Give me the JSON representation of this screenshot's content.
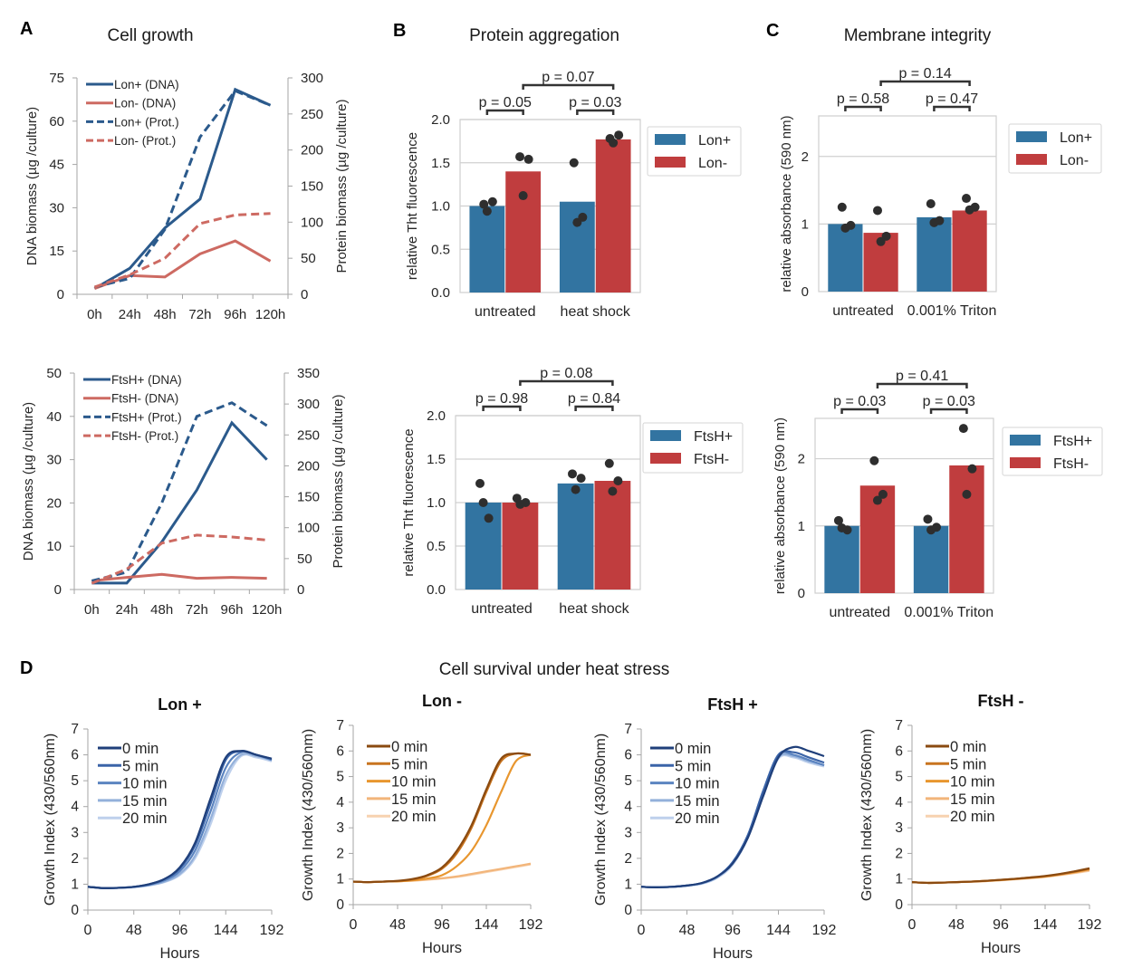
{
  "panel_labels": {
    "A": "A",
    "B": "B",
    "C": "C",
    "D": "D"
  },
  "titles": {
    "A": "Cell growth",
    "B": "Protein aggregation",
    "C": "Membrane integrity",
    "D": "Cell survival under heat stress"
  },
  "chart_data": [
    {
      "type": "line",
      "categories": [
        "0h",
        "24h",
        "48h",
        "72h",
        "96h",
        "120h"
      ],
      "ylabel": "DNA biomass (µg /culture)",
      "y2label": "Protein biomass (µg /culture)",
      "ylim": [
        0,
        75
      ],
      "yticks": [
        0,
        15,
        30,
        45,
        60,
        75
      ],
      "y2lim": [
        0,
        300
      ],
      "y2ticks": [
        0,
        50,
        100,
        150,
        200,
        250,
        300
      ],
      "legend": "top-left",
      "series": [
        {
          "name": "Lon+ (DNA)",
          "axis": "left",
          "style": "solid",
          "color": "#2b5a8c",
          "values": [
            2,
            9,
            23,
            33,
            71,
            65.5
          ]
        },
        {
          "name": "Lon- (DNA)",
          "axis": "left",
          "style": "solid",
          "color": "#cd6a62",
          "values": [
            2,
            6.5,
            6,
            14,
            18.5,
            11.5
          ]
        },
        {
          "name": "Lon+ (Prot.)",
          "axis": "right",
          "style": "dashed",
          "color": "#2b5a8c",
          "values": [
            10,
            22,
            90,
            218,
            282,
            262
          ]
        },
        {
          "name": "Lon- (Prot.)",
          "axis": "right",
          "style": "dashed",
          "color": "#cd6a62",
          "values": [
            10,
            27,
            50,
            98,
            110,
            112
          ]
        }
      ]
    },
    {
      "type": "line",
      "categories": [
        "0h",
        "24h",
        "48h",
        "72h",
        "96h",
        "120h"
      ],
      "ylabel": "DNA biomass (µg /culture)",
      "y2label": "Protein biomass (µg /culture)",
      "ylim": [
        0,
        50
      ],
      "yticks": [
        0,
        10,
        20,
        30,
        40,
        50
      ],
      "y2lim": [
        0,
        350
      ],
      "y2ticks": [
        0,
        50,
        100,
        150,
        200,
        250,
        300,
        350
      ],
      "legend": "top-left",
      "series": [
        {
          "name": "FtsH+ (DNA)",
          "axis": "left",
          "style": "solid",
          "color": "#2b5a8c",
          "values": [
            1.5,
            1.5,
            11,
            23,
            38.5,
            30
          ]
        },
        {
          "name": "FtsH- (DNA)",
          "axis": "left",
          "style": "solid",
          "color": "#cd6a62",
          "values": [
            2,
            2.8,
            3.5,
            2.6,
            2.8,
            2.6
          ]
        },
        {
          "name": "FtsH+ (Prot.)",
          "axis": "right",
          "style": "dashed",
          "color": "#2b5a8c",
          "values": [
            14,
            28,
            140,
            280,
            302,
            265
          ]
        },
        {
          "name": "FtsH- (Prot.)",
          "axis": "right",
          "style": "dashed",
          "color": "#cd6a62",
          "values": [
            10,
            33,
            75,
            88,
            85,
            80
          ]
        }
      ]
    },
    {
      "type": "bar",
      "categories": [
        "untreated",
        "heat shock"
      ],
      "ylabel": "relative Tht fluorescence",
      "ylim": [
        0,
        2.0
      ],
      "yticks": [
        "0.0",
        "0.5",
        "1.0",
        "1.5",
        "2.0"
      ],
      "grid": true,
      "legend": "right",
      "series": [
        {
          "name": "Lon+",
          "color": "#3274a1",
          "values": [
            1.0,
            1.05
          ],
          "points": [
            [
              1.02,
              1.05,
              0.94
            ],
            [
              1.5,
              0.87,
              0.81
            ]
          ]
        },
        {
          "name": "Lon-",
          "color": "#c03d3e",
          "values": [
            1.4,
            1.77
          ],
          "points": [
            [
              1.57,
              1.54,
              1.12
            ],
            [
              1.78,
              1.82,
              1.73
            ]
          ]
        }
      ],
      "comparisons": [
        {
          "label": "p = 0.05",
          "from": [
            0,
            0
          ],
          "to": [
            0,
            1
          ],
          "level": 1
        },
        {
          "label": "p = 0.03",
          "from": [
            1,
            0
          ],
          "to": [
            1,
            1
          ],
          "level": 1
        },
        {
          "label": "p = 0.07",
          "from": [
            0,
            1
          ],
          "to": [
            1,
            1
          ],
          "level": 2
        }
      ]
    },
    {
      "type": "bar",
      "categories": [
        "untreated",
        "0.001% Triton"
      ],
      "ylabel": "relative absorbance (590 nm)",
      "ylim": [
        0,
        2.6
      ],
      "yticks": [
        "0",
        "1",
        "2"
      ],
      "grid": true,
      "legend": "right",
      "series": [
        {
          "name": "Lon+",
          "color": "#3274a1",
          "values": [
            1.0,
            1.1
          ],
          "points": [
            [
              1.25,
              0.98,
              0.94
            ],
            [
              1.3,
              1.05,
              1.02
            ]
          ]
        },
        {
          "name": "Lon-",
          "color": "#c03d3e",
          "values": [
            0.87,
            1.2
          ],
          "points": [
            [
              1.2,
              0.82,
              0.74
            ],
            [
              1.38,
              1.25,
              1.21
            ]
          ]
        }
      ],
      "comparisons": [
        {
          "label": "p = 0.58",
          "from": [
            0,
            0
          ],
          "to": [
            0,
            1
          ],
          "level": 1
        },
        {
          "label": "p = 0.47",
          "from": [
            1,
            0
          ],
          "to": [
            1,
            1
          ],
          "level": 1
        },
        {
          "label": "p = 0.14",
          "from": [
            0,
            1
          ],
          "to": [
            1,
            1
          ],
          "level": 2
        }
      ]
    },
    {
      "type": "bar",
      "categories": [
        "untreated",
        "heat shock"
      ],
      "ylabel": "relative Tht fluorescence",
      "ylim": [
        0,
        2.0
      ],
      "yticks": [
        "0.0",
        "0.5",
        "1.0",
        "1.5",
        "2.0"
      ],
      "grid": true,
      "legend": "right",
      "series": [
        {
          "name": "FtsH+",
          "color": "#3274a1",
          "values": [
            1.0,
            1.22
          ],
          "points": [
            [
              1.22,
              0.82,
              1.0
            ],
            [
              1.33,
              1.28,
              1.15
            ]
          ]
        },
        {
          "name": "FtsH-",
          "color": "#c03d3e",
          "values": [
            1.0,
            1.25
          ],
          "points": [
            [
              1.05,
              1.0,
              0.98
            ],
            [
              1.45,
              1.25,
              1.13
            ]
          ]
        }
      ],
      "comparisons": [
        {
          "label": "p = 0.98",
          "from": [
            0,
            0
          ],
          "to": [
            0,
            1
          ],
          "level": 1
        },
        {
          "label": "p = 0.84",
          "from": [
            1,
            0
          ],
          "to": [
            1,
            1
          ],
          "level": 1
        },
        {
          "label": "p = 0.08",
          "from": [
            0,
            1
          ],
          "to": [
            1,
            1
          ],
          "level": 2
        }
      ]
    },
    {
      "type": "bar",
      "categories": [
        "untreated",
        "0.001% Triton"
      ],
      "ylabel": "relative absorbance (590 nm)",
      "ylim": [
        0,
        2.6
      ],
      "yticks": [
        "0",
        "1",
        "2"
      ],
      "grid": true,
      "legend": "right",
      "series": [
        {
          "name": "FtsH+",
          "color": "#3274a1",
          "values": [
            1.0,
            1.0
          ],
          "points": [
            [
              1.08,
              0.94,
              0.97
            ],
            [
              1.1,
              0.98,
              0.94
            ]
          ]
        },
        {
          "name": "FtsH-",
          "color": "#c03d3e",
          "values": [
            1.6,
            1.9
          ],
          "points": [
            [
              1.97,
              1.47,
              1.38
            ],
            [
              2.45,
              1.85,
              1.47
            ]
          ]
        }
      ],
      "comparisons": [
        {
          "label": "p = 0.03",
          "from": [
            0,
            0
          ],
          "to": [
            0,
            1
          ],
          "level": 1
        },
        {
          "label": "p = 0.03",
          "from": [
            1,
            0
          ],
          "to": [
            1,
            1
          ],
          "level": 1
        },
        {
          "label": "p = 0.41",
          "from": [
            0,
            1
          ],
          "to": [
            1,
            1
          ],
          "level": 2
        }
      ]
    },
    {
      "type": "line",
      "title": "Lon +",
      "xlabel": "Hours",
      "ylabel": "Growth Index (430/560nm)",
      "xlim": [
        0,
        192
      ],
      "xticks": [
        0,
        48,
        96,
        144,
        192
      ],
      "ylim": [
        0,
        7
      ],
      "yticks": [
        0,
        1,
        2,
        3,
        4,
        5,
        6,
        7
      ],
      "legend": "top-left",
      "x": [
        0,
        16,
        32,
        48,
        64,
        80,
        96,
        112,
        128,
        144,
        160,
        176,
        192
      ],
      "series": [
        {
          "name": "0 min",
          "color": "#1f3f7a",
          "values": [
            0.9,
            0.85,
            0.86,
            0.9,
            1.0,
            1.2,
            1.65,
            2.6,
            4.3,
            5.9,
            6.15,
            6.0,
            5.85
          ]
        },
        {
          "name": "5 min",
          "color": "#3b64a8",
          "values": [
            0.9,
            0.85,
            0.86,
            0.9,
            1.0,
            1.2,
            1.6,
            2.5,
            4.1,
            5.8,
            6.15,
            6.0,
            5.85
          ]
        },
        {
          "name": "10 min",
          "color": "#5b84c0",
          "values": [
            0.9,
            0.85,
            0.86,
            0.9,
            0.98,
            1.15,
            1.5,
            2.3,
            3.8,
            5.5,
            6.1,
            6.0,
            5.8
          ]
        },
        {
          "name": "15 min",
          "color": "#93b0da",
          "values": [
            0.9,
            0.85,
            0.86,
            0.89,
            0.96,
            1.1,
            1.4,
            2.1,
            3.5,
            5.2,
            6.0,
            5.95,
            5.8
          ]
        },
        {
          "name": "20 min",
          "color": "#bed0ec",
          "values": [
            0.9,
            0.85,
            0.86,
            0.88,
            0.95,
            1.08,
            1.35,
            2.0,
            3.3,
            5.0,
            5.95,
            5.9,
            5.75
          ]
        }
      ]
    },
    {
      "type": "line",
      "title": "Lon -",
      "xlabel": "Hours",
      "ylabel": "Growth Index (430/560nm)",
      "xlim": [
        0,
        192
      ],
      "xticks": [
        0,
        48,
        96,
        144,
        192
      ],
      "ylim": [
        0,
        7
      ],
      "yticks": [
        0,
        1,
        2,
        3,
        4,
        5,
        6,
        7
      ],
      "legend": "top-left",
      "x": [
        0,
        16,
        32,
        48,
        64,
        80,
        96,
        112,
        128,
        144,
        160,
        176,
        192
      ],
      "series": [
        {
          "name": "0 min",
          "color": "#8a4a10",
          "values": [
            0.9,
            0.88,
            0.9,
            0.93,
            1.0,
            1.15,
            1.45,
            2.1,
            3.1,
            4.5,
            5.7,
            5.9,
            5.85
          ]
        },
        {
          "name": "5 min",
          "color": "#c8741f",
          "values": [
            0.9,
            0.88,
            0.9,
            0.92,
            0.98,
            1.12,
            1.4,
            2.0,
            3.0,
            4.4,
            5.6,
            5.9,
            5.85
          ]
        },
        {
          "name": "10 min",
          "color": "#e8962e",
          "values": [
            0.9,
            0.88,
            0.9,
            0.91,
            0.95,
            1.02,
            1.15,
            1.5,
            2.1,
            3.1,
            4.4,
            5.6,
            5.85
          ]
        },
        {
          "name": "15 min",
          "color": "#f2b57a",
          "values": [
            0.9,
            0.88,
            0.9,
            0.91,
            0.94,
            0.98,
            1.03,
            1.1,
            1.2,
            1.3,
            1.4,
            1.5,
            1.6
          ]
        },
        {
          "name": "20 min",
          "color": "#f7d2b0",
          "values": [
            0.9,
            0.88,
            0.9,
            0.91,
            0.93,
            0.97,
            1.02,
            1.08,
            1.17,
            1.27,
            1.37,
            1.47,
            1.57
          ]
        }
      ]
    },
    {
      "type": "line",
      "title": "FtsH +",
      "xlabel": "Hours",
      "ylabel": "Growth Index (430/560nm)",
      "xlim": [
        0,
        192
      ],
      "xticks": [
        0,
        48,
        96,
        144,
        192
      ],
      "ylim": [
        0,
        7
      ],
      "yticks": [
        0,
        1,
        2,
        3,
        4,
        5,
        6,
        7
      ],
      "legend": "top-left",
      "x": [
        0,
        16,
        32,
        48,
        64,
        80,
        96,
        112,
        128,
        144,
        160,
        176,
        192
      ],
      "series": [
        {
          "name": "0 min",
          "color": "#1f3f7a",
          "values": [
            0.9,
            0.88,
            0.9,
            0.95,
            1.05,
            1.3,
            1.8,
            2.8,
            4.4,
            5.9,
            6.3,
            6.15,
            5.95
          ]
        },
        {
          "name": "5 min",
          "color": "#3b64a8",
          "values": [
            0.9,
            0.88,
            0.9,
            0.95,
            1.05,
            1.3,
            1.85,
            2.9,
            4.6,
            6.0,
            6.1,
            5.9,
            5.7
          ]
        },
        {
          "name": "10 min",
          "color": "#5b84c0",
          "values": [
            0.9,
            0.88,
            0.9,
            0.95,
            1.05,
            1.3,
            1.85,
            2.9,
            4.6,
            6.0,
            6.0,
            5.8,
            5.6
          ]
        },
        {
          "name": "15 min",
          "color": "#93b0da",
          "values": [
            0.9,
            0.88,
            0.9,
            0.94,
            1.03,
            1.27,
            1.8,
            2.85,
            4.5,
            5.9,
            5.95,
            5.75,
            5.6
          ]
        },
        {
          "name": "20 min",
          "color": "#bed0ec",
          "values": [
            0.9,
            0.88,
            0.9,
            0.94,
            1.02,
            1.25,
            1.75,
            2.8,
            4.4,
            5.85,
            5.9,
            5.7,
            5.55
          ]
        }
      ]
    },
    {
      "type": "line",
      "title": "FtsH -",
      "xlabel": "Hours",
      "ylabel": "Growth Index (430/560nm)",
      "xlim": [
        0,
        192
      ],
      "xticks": [
        0,
        48,
        96,
        144,
        192
      ],
      "ylim": [
        0,
        7
      ],
      "yticks": [
        0,
        1,
        2,
        3,
        4,
        5,
        6,
        7
      ],
      "legend": "top-left",
      "x": [
        0,
        16,
        32,
        48,
        64,
        80,
        96,
        112,
        128,
        144,
        160,
        176,
        192
      ],
      "series": [
        {
          "name": "0 min",
          "color": "#8a4a10",
          "values": [
            0.88,
            0.85,
            0.86,
            0.88,
            0.9,
            0.93,
            0.97,
            1.01,
            1.06,
            1.12,
            1.2,
            1.3,
            1.42
          ]
        },
        {
          "name": "5 min",
          "color": "#c8741f",
          "values": [
            0.88,
            0.85,
            0.86,
            0.88,
            0.9,
            0.93,
            0.97,
            1.01,
            1.06,
            1.11,
            1.19,
            1.29,
            1.4
          ]
        },
        {
          "name": "10 min",
          "color": "#e8962e",
          "values": [
            0.88,
            0.85,
            0.86,
            0.88,
            0.9,
            0.93,
            0.96,
            1.0,
            1.05,
            1.1,
            1.18,
            1.27,
            1.38
          ]
        },
        {
          "name": "15 min",
          "color": "#f2b57a",
          "values": [
            0.88,
            0.85,
            0.86,
            0.88,
            0.9,
            0.92,
            0.96,
            1.0,
            1.04,
            1.09,
            1.16,
            1.25,
            1.35
          ]
        },
        {
          "name": "20 min",
          "color": "#f7d2b0",
          "values": [
            0.88,
            0.85,
            0.86,
            0.88,
            0.89,
            0.92,
            0.95,
            0.99,
            1.03,
            1.08,
            1.15,
            1.23,
            1.32
          ]
        }
      ]
    }
  ]
}
